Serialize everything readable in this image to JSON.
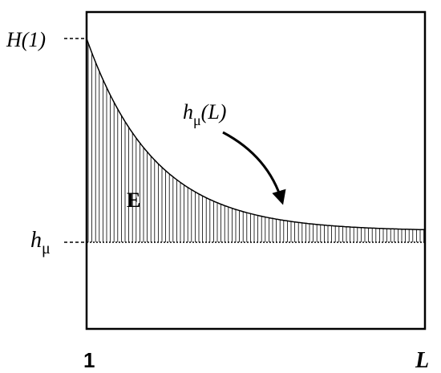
{
  "labels": {
    "h_one": "H(1)",
    "h_mu": {
      "base": "h",
      "sub": "μ"
    },
    "h_mu_L": {
      "base": "h",
      "sub": "μ",
      "rest": "(L)"
    },
    "excess": "E",
    "x_start": "1",
    "x_end": "L"
  }
}
